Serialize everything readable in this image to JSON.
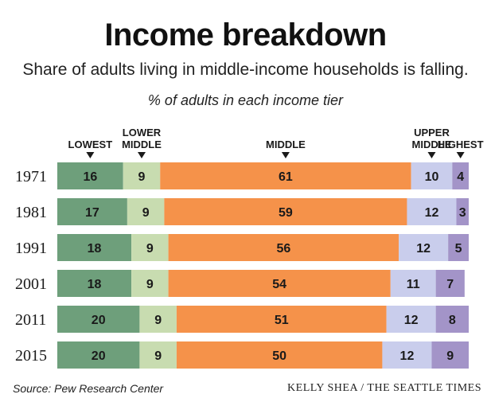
{
  "header": {
    "title": "Income breakdown",
    "subtitle": "Share of adults living in middle-income households is falling.",
    "unit_label": "% of adults in each income tier"
  },
  "footer": {
    "source": "Source: Pew Research Center",
    "credit": "KELLY SHEA / THE SEATTLE TIMES"
  },
  "chart_data": {
    "type": "bar",
    "stacked": true,
    "orientation": "horizontal",
    "categories": [
      "1971",
      "1981",
      "1991",
      "2001",
      "2011",
      "2015"
    ],
    "series": [
      {
        "name": "LOWEST",
        "label_lines": [
          "LOWEST"
        ],
        "color": "#6e9f7b",
        "values": [
          16,
          17,
          18,
          18,
          20,
          20
        ]
      },
      {
        "name": "LOWER MIDDLE",
        "label_lines": [
          "LOWER",
          "MIDDLE"
        ],
        "color": "#c8dcb0",
        "values": [
          9,
          9,
          9,
          9,
          9,
          9
        ]
      },
      {
        "name": "MIDDLE",
        "label_lines": [
          "MIDDLE"
        ],
        "color": "#f5924a",
        "values": [
          61,
          59,
          56,
          54,
          51,
          50
        ]
      },
      {
        "name": "UPPER MIDDLE",
        "label_lines": [
          "UPPER",
          "MIDDLE"
        ],
        "color": "#c9cdec",
        "values": [
          10,
          12,
          12,
          11,
          12,
          12
        ]
      },
      {
        "name": "HIGHEST",
        "label_lines": [
          "HIGHEST"
        ],
        "color": "#a394c8",
        "values": [
          4,
          3,
          5,
          7,
          8,
          9
        ]
      }
    ],
    "xlim": [
      0,
      100
    ],
    "grid": false,
    "legend": "top"
  }
}
